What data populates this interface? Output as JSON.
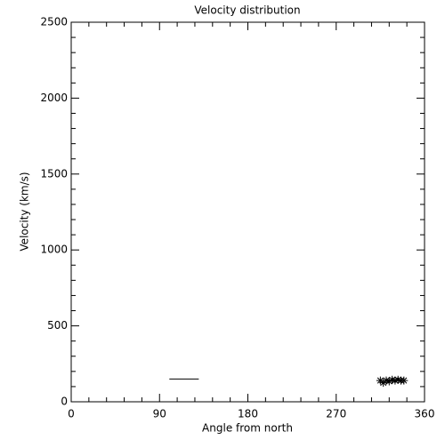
{
  "chart_data": {
    "type": "scatter",
    "title": "Velocity distribution",
    "xlabel": "Angle from north",
    "ylabel": "Velocity (km/s)",
    "xlim": [
      0,
      360
    ],
    "xticks": [
      0,
      90,
      180,
      270,
      360
    ],
    "xminor": 5,
    "ylim": [
      0,
      2500
    ],
    "yticks": [
      0,
      500,
      1000,
      1500,
      2000,
      2500
    ],
    "yminor": 5,
    "color": "#000000",
    "series": [
      {
        "style": "line",
        "x": [
          100,
          130
        ],
        "values": [
          150,
          150
        ]
      },
      {
        "style": "asterisk",
        "x": [
          315,
          318,
          321,
          324,
          327,
          330,
          333,
          336,
          339
        ],
        "values": [
          140,
          125,
          140,
          135,
          145,
          140,
          145,
          140,
          140
        ]
      }
    ]
  }
}
